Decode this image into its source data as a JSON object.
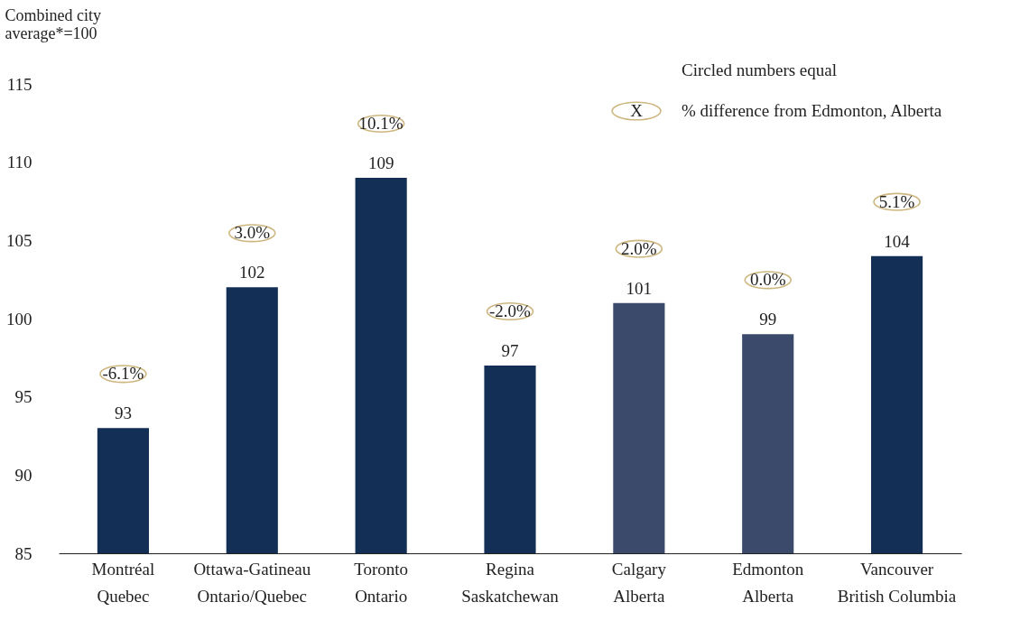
{
  "chart_data": {
    "type": "bar",
    "ylabel": "Combined city\naverage*=100",
    "categories": [
      "Montréal\nQuebec",
      "Ottawa-Gatineau\nOntario/Quebec",
      "Toronto\nOntario",
      "Regina\nSaskatchewan",
      "Calgary\nAlberta",
      "Edmonton\nAlberta",
      "Vancouver\nBritish Columbia"
    ],
    "values": [
      93,
      102,
      109,
      97,
      101,
      99,
      104
    ],
    "colors": [
      "#142f55",
      "#142f55",
      "#142f55",
      "#142f55",
      "#3b4a6b",
      "#3b4a6b",
      "#142f55"
    ],
    "ylim": [
      85,
      115
    ],
    "yticks": [
      85,
      90,
      95,
      100,
      105,
      110,
      115
    ],
    "grid": false,
    "data_labels": true,
    "annotations": [
      "-6.1%",
      "3.0%",
      "10.1%",
      "-2.0%",
      "2.0%",
      "0.0%",
      "5.1%",
      "Circled numbers equal",
      "X",
      "% difference from Edmonton, Alberta"
    ]
  }
}
